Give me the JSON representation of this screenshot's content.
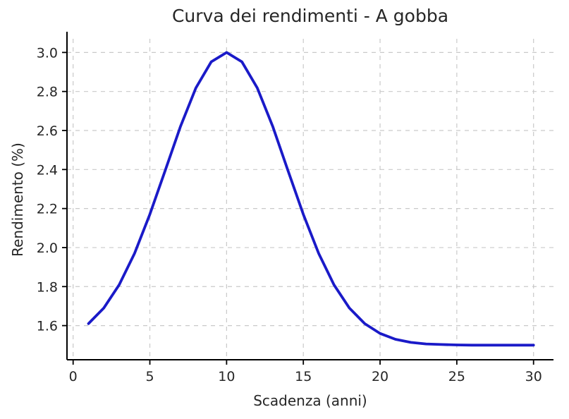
{
  "chart_data": {
    "type": "line",
    "title": "Curva dei rendimenti - A gobba",
    "xlabel": "Scadenza (anni)",
    "ylabel": "Rendimento (%)",
    "x": [
      1,
      2,
      3,
      4,
      5,
      6,
      7,
      8,
      9,
      10,
      11,
      12,
      13,
      14,
      15,
      16,
      17,
      18,
      19,
      20,
      21,
      22,
      23,
      24,
      25,
      26,
      27,
      28,
      29,
      30
    ],
    "y": [
      1.61,
      1.69,
      1.809,
      1.97,
      2.17,
      2.395,
      2.622,
      2.818,
      2.952,
      3.0,
      2.952,
      2.818,
      2.622,
      2.395,
      2.17,
      1.97,
      1.809,
      1.69,
      1.61,
      1.56,
      1.53,
      1.514,
      1.506,
      1.503,
      1.501,
      1.5,
      1.5,
      1.5,
      1.5,
      1.5
    ],
    "xticks": [
      0,
      5,
      10,
      15,
      20,
      25,
      30
    ],
    "yticks": [
      1.6,
      1.8,
      2.0,
      2.2,
      2.4,
      2.6,
      2.8,
      3.0
    ],
    "xlim": [
      -0.4,
      31.3
    ],
    "ylim": [
      1.425,
      3.07
    ],
    "grid": true,
    "grid_style": "dashed",
    "legend": "none",
    "line_color": "#1a1ac8",
    "grid_color": "#c9c9c9",
    "axis_color": "#000000",
    "text_color": "#262626"
  }
}
